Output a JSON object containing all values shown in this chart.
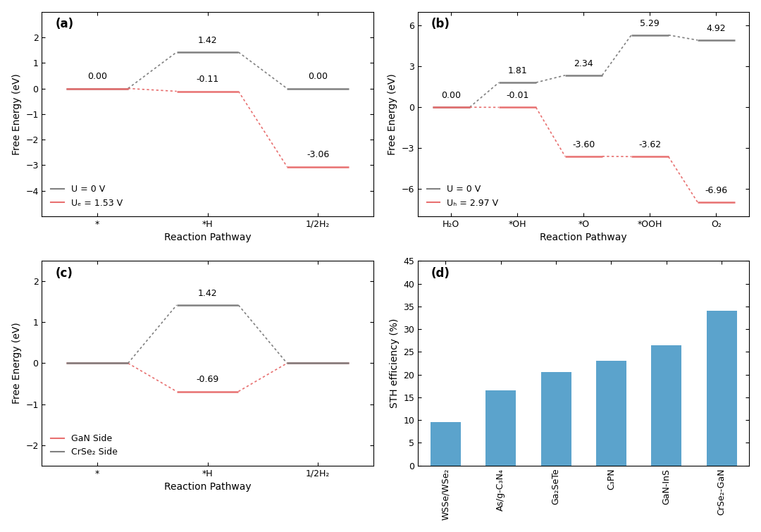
{
  "panel_a": {
    "title": "(a)",
    "xlabel": "Reaction Pathway",
    "ylabel": "Free Energy (eV)",
    "ylim": [
      -5,
      3
    ],
    "yticks": [
      -4,
      -3,
      -2,
      -1,
      0,
      1,
      2
    ],
    "xtick_labels": [
      "*",
      "*H",
      "1/2H₂"
    ],
    "xtick_pos": [
      0,
      1,
      2
    ],
    "u0_levels": [
      0.0,
      1.42,
      0.0
    ],
    "ue_levels": [
      0.0,
      -0.11,
      -3.06
    ],
    "u0_labels": [
      "0.00",
      "1.42",
      "0.00"
    ],
    "ue_labels": [
      "-0.11",
      "-3.06"
    ],
    "ue_label_indices": [
      1,
      2
    ],
    "legend_u0": "U = 0 V",
    "legend_ue": "Uₑ = 1.53 V",
    "color_u0": "#808080",
    "color_ue": "#E87070",
    "level_hw": 0.28,
    "xlim": [
      -0.5,
      2.5
    ]
  },
  "panel_b": {
    "title": "(b)",
    "xlabel": "Reaction Pathway",
    "ylabel": "Free Energy (eV)",
    "ylim": [
      -8,
      7
    ],
    "yticks": [
      -6,
      -3,
      0,
      3,
      6
    ],
    "xtick_labels": [
      "H₂O",
      "*OH",
      "*O",
      "*OOH",
      "O₂"
    ],
    "xtick_pos": [
      0,
      1,
      2,
      3,
      4
    ],
    "u0_levels": [
      0.0,
      1.81,
      2.34,
      5.29,
      4.92
    ],
    "ue_levels": [
      0.0,
      -0.01,
      -3.6,
      -3.62,
      -6.96
    ],
    "u0_labels": [
      "0.00",
      "1.81",
      "2.34",
      "5.29",
      "4.92"
    ],
    "ue_labels": [
      "-0.01",
      "-3.60",
      "-3.62",
      "-6.96"
    ],
    "ue_label_indices": [
      1,
      2,
      3,
      4
    ],
    "legend_u0": "U = 0 V",
    "legend_ue": "Uₕ = 2.97 V",
    "color_u0": "#808080",
    "color_ue": "#E87070",
    "level_hw": 0.28,
    "xlim": [
      -0.5,
      4.5
    ]
  },
  "panel_c": {
    "title": "(c)",
    "xlabel": "Reaction Pathway",
    "ylabel": "Free Energy (eV)",
    "ylim": [
      -2.5,
      2.5
    ],
    "yticks": [
      -2,
      -1,
      0,
      1,
      2
    ],
    "xtick_labels": [
      "*",
      "*H",
      "1/2H₂"
    ],
    "xtick_pos": [
      0,
      1,
      2
    ],
    "gan_levels": [
      0.0,
      -0.69,
      0.0
    ],
    "crse2_levels": [
      0.0,
      1.42,
      0.0
    ],
    "gan_label": "-0.69",
    "crse2_label": "1.42",
    "legend_gan": "GaN Side",
    "legend_crse2": "CrSe₂ Side",
    "color_gan": "#E87070",
    "color_crse2": "#808080",
    "level_hw": 0.28,
    "xlim": [
      -0.5,
      2.5
    ]
  },
  "panel_d": {
    "title": "(d)",
    "ylabel": "STH efficiency (%)",
    "ylim": [
      0,
      45
    ],
    "yticks": [
      0,
      5,
      10,
      15,
      20,
      25,
      30,
      35,
      40,
      45
    ],
    "categories": [
      "WSSe/WSe₂",
      "As/g-C₃N₄",
      "Ga₂SeTe",
      "C₃PN",
      "GaN-InS",
      "CrSe₂-GaN"
    ],
    "values": [
      9.5,
      16.5,
      20.5,
      23.0,
      26.5,
      34.0
    ],
    "bar_color": "#5BA3CC",
    "bar_width": 0.55
  }
}
